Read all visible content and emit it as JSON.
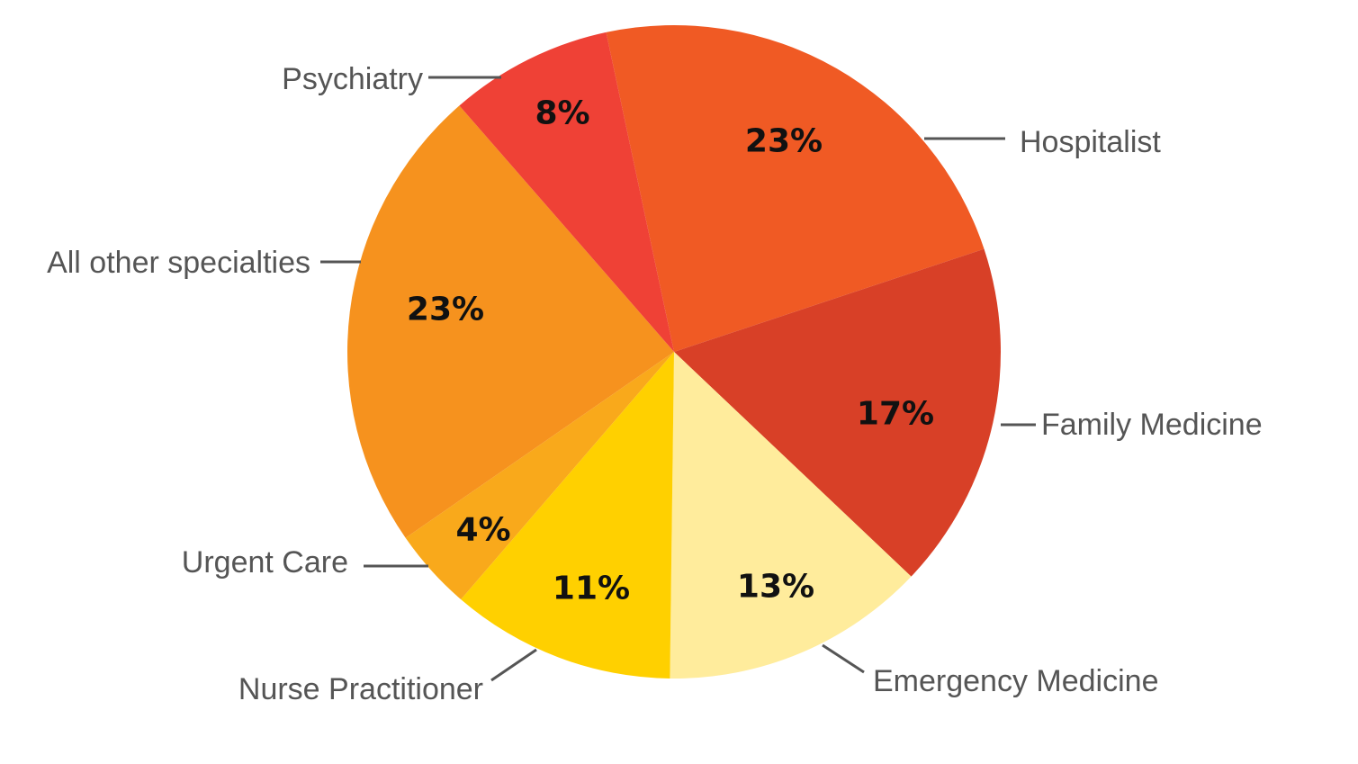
{
  "chart_data": {
    "type": "pie",
    "title": "",
    "slices": [
      {
        "name": "Hospitalist",
        "value": 23,
        "label": "23%",
        "color": "#F05A24"
      },
      {
        "name": "Family Medicine",
        "value": 17,
        "label": "17%",
        "color": "#D84027"
      },
      {
        "name": "Emergency Medicine",
        "value": 13,
        "label": "13%",
        "color": "#FFEC9C"
      },
      {
        "name": "Nurse Practitioner",
        "value": 11,
        "label": "11%",
        "color": "#FFD000"
      },
      {
        "name": "Urgent Care",
        "value": 4,
        "label": "4%",
        "color": "#F9A91B"
      },
      {
        "name": "All other specialties",
        "value": 23,
        "label": "23%",
        "color": "#F6921E"
      },
      {
        "name": "Psychiatry",
        "value": 8,
        "label": "8%",
        "color": "#EF4136"
      }
    ]
  }
}
